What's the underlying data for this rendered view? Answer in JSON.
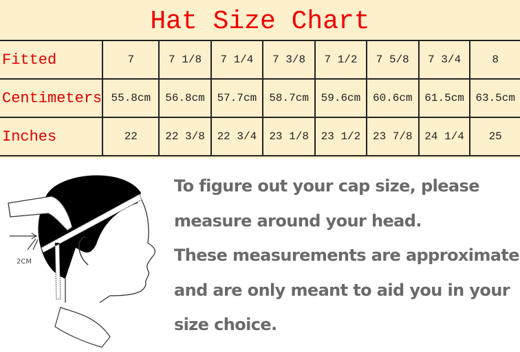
{
  "title": "Hat Size Chart",
  "rows": [
    {
      "label": "Fitted",
      "values": [
        "7",
        "7 1/8",
        "7 1/4",
        "7 3/8",
        "7 1/2",
        "7 5/8",
        "7 3/4",
        "8"
      ]
    },
    {
      "label": "Centimeters",
      "values": [
        "55.8cm",
        "56.8cm",
        "57.7cm",
        "58.7cm",
        "59.6cm",
        "60.6cm",
        "61.5cm",
        "63.5cm"
      ]
    },
    {
      "label": "Inches",
      "values": [
        "22",
        "22 3/8",
        "22 3/4",
        "23 1/8",
        "23 1/2",
        "23 7/8",
        "24 1/4",
        "25"
      ]
    }
  ],
  "illustration": {
    "marker_label": "2CM"
  },
  "instructions": [
    "To figure out your cap size, please",
    "measure around your head.",
    "These measurements are approximate",
    "and are only meant to aid you in your",
    "size choice."
  ],
  "colors": {
    "background": "#fdf0cd",
    "title": "#f20000",
    "label": "#e00000",
    "instructions": "#6a6a6a"
  }
}
